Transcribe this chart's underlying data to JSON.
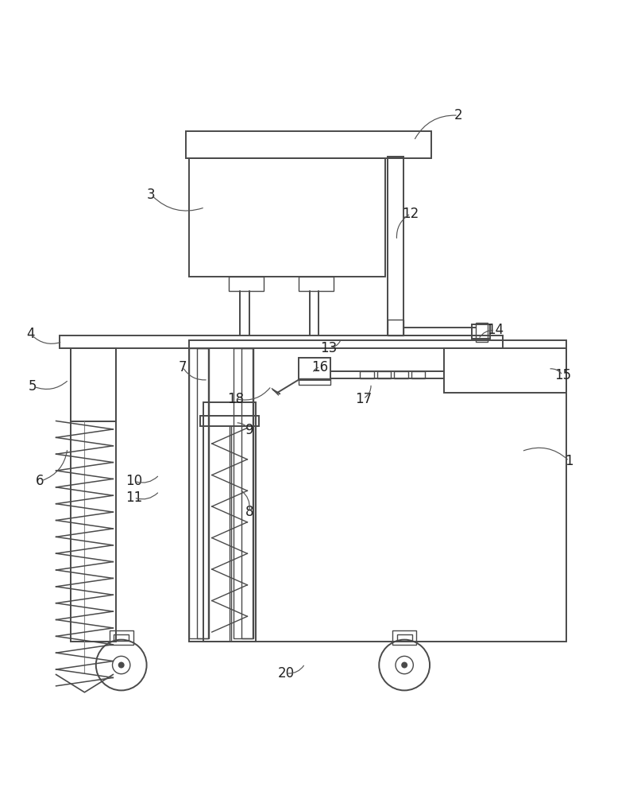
{
  "bg_color": "#ffffff",
  "line_color": "#4a4a4a",
  "lw_main": 1.4,
  "lw_thin": 1.0,
  "fig_width": 8.03,
  "fig_height": 10.0,
  "labels": {
    "1": [
      0.895,
      0.4,
      0.82,
      0.415
    ],
    "2": [
      0.72,
      0.945,
      0.65,
      0.905
    ],
    "3": [
      0.235,
      0.82,
      0.32,
      0.8
    ],
    "4": [
      0.045,
      0.6,
      0.095,
      0.588
    ],
    "5": [
      0.048,
      0.518,
      0.105,
      0.528
    ],
    "6": [
      0.06,
      0.368,
      0.103,
      0.42
    ],
    "7": [
      0.285,
      0.548,
      0.325,
      0.528
    ],
    "8": [
      0.39,
      0.32,
      0.375,
      0.355
    ],
    "9": [
      0.39,
      0.448,
      0.368,
      0.46
    ],
    "10": [
      0.208,
      0.368,
      0.248,
      0.378
    ],
    "11": [
      0.208,
      0.342,
      0.248,
      0.352
    ],
    "12": [
      0.645,
      0.79,
      0.623,
      0.748
    ],
    "13": [
      0.515,
      0.578,
      0.535,
      0.592
    ],
    "14": [
      0.778,
      0.606,
      0.752,
      0.592
    ],
    "15": [
      0.885,
      0.535,
      0.862,
      0.545
    ],
    "16": [
      0.502,
      0.548,
      0.49,
      0.538
    ],
    "17": [
      0.57,
      0.498,
      0.582,
      0.522
    ],
    "18": [
      0.368,
      0.498,
      0.425,
      0.518
    ],
    "20": [
      0.448,
      0.065,
      0.478,
      0.08
    ]
  }
}
